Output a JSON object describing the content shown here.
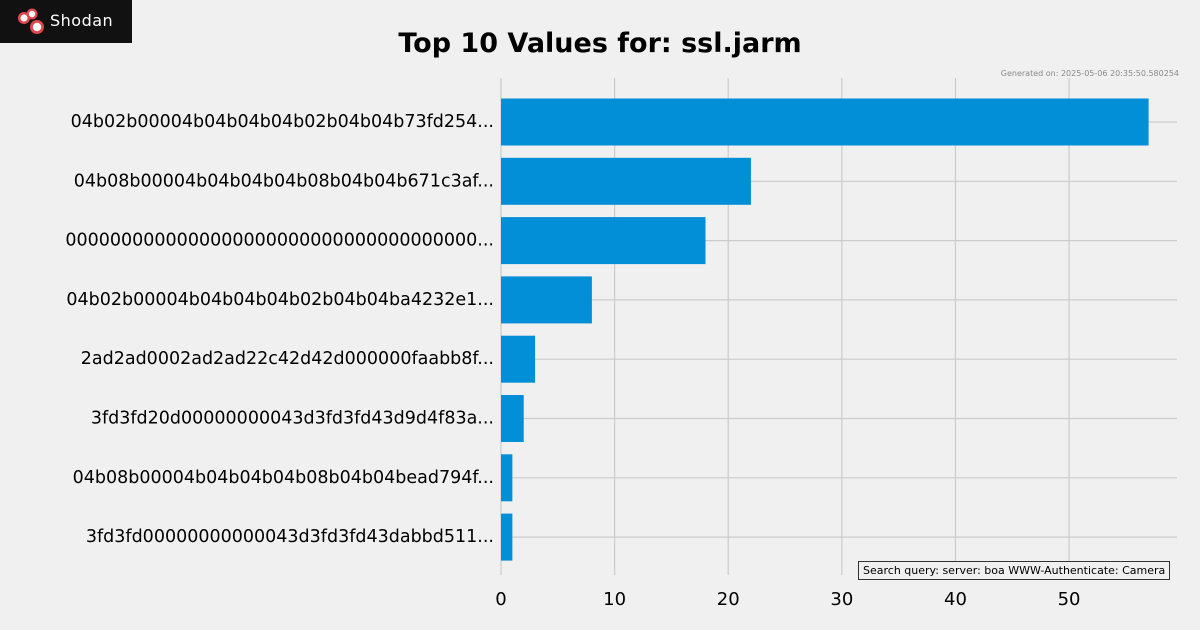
{
  "brand": {
    "name": "Shodan",
    "logo_icon": "shodan-logo-icon",
    "colors": {
      "background": "#111111",
      "text": "#ffffff",
      "accent": "#e0474c"
    }
  },
  "header": {
    "generated": "Generated on: 2025-05-06 20:35:50.580254"
  },
  "footer": {
    "query": "Search query: server: boa WWW-Authenticate: Camera"
  },
  "chart_data": {
    "type": "bar",
    "orientation": "horizontal",
    "title": "Top 10 Values for: ssl.jarm",
    "categories": [
      "04b02b00004b04b04b04b02b04b04b73fd254...",
      "04b08b00004b04b04b04b08b04b04b671c3af...",
      "0000000000000000000000000000000000000...",
      "04b02b00004b04b04b04b02b04b04ba4232e1...",
      "2ad2ad0002ad2ad22c42d42d000000faabb8f...",
      "3fd3fd20d00000000043d3fd3fd43d9d4f83a...",
      "04b08b00004b04b04b04b08b04b04bead794f...",
      "3fd3fd00000000000043d3fd3fd43dabbd511..."
    ],
    "values": [
      57,
      22,
      18,
      8,
      3,
      2,
      1,
      1
    ],
    "xlim": [
      0,
      59.5
    ],
    "xticks": [
      0,
      10,
      20,
      30,
      40,
      50
    ],
    "xlabel": "",
    "ylabel": "",
    "grid": true,
    "bar_color": "#028fd7"
  }
}
